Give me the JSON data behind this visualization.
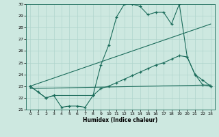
{
  "xlabel": "Humidex (Indice chaleur)",
  "xlim": [
    -0.5,
    23.5
  ],
  "ylim": [
    21,
    30
  ],
  "yticks": [
    21,
    22,
    23,
    24,
    25,
    26,
    27,
    28,
    29,
    30
  ],
  "xticks": [
    0,
    1,
    2,
    3,
    4,
    5,
    6,
    7,
    8,
    9,
    10,
    11,
    12,
    13,
    14,
    15,
    16,
    17,
    18,
    19,
    20,
    21,
    22,
    23
  ],
  "bg_color": "#cde8e0",
  "line_color": "#1a6b5a",
  "grid_color": "#b0d4cc",
  "line1_x": [
    0,
    1,
    2,
    3,
    4,
    5,
    6,
    7,
    8,
    9,
    10,
    11,
    12,
    13,
    14,
    15,
    16,
    17,
    18,
    19,
    20,
    21,
    22,
    23
  ],
  "line1_y": [
    23.0,
    22.5,
    22.0,
    22.2,
    21.2,
    21.3,
    21.3,
    21.2,
    22.2,
    24.8,
    26.5,
    28.9,
    30.0,
    30.0,
    29.8,
    29.1,
    29.3,
    29.3,
    28.3,
    30.0,
    25.5,
    24.0,
    23.1,
    23.0
  ],
  "line2_x": [
    0,
    2,
    3,
    8,
    9,
    10,
    11,
    12,
    13,
    14,
    15,
    16,
    17,
    18,
    19,
    20,
    21,
    22,
    23
  ],
  "line2_y": [
    23.0,
    22.0,
    22.2,
    22.2,
    22.8,
    23.0,
    23.3,
    23.6,
    23.9,
    24.2,
    24.5,
    24.8,
    25.0,
    25.3,
    25.6,
    25.5,
    24.0,
    23.5,
    23.0
  ],
  "line3_x": [
    0,
    23
  ],
  "line3_y": [
    23.0,
    28.3
  ],
  "line4_x": [
    0,
    23
  ],
  "line4_y": [
    22.8,
    23.1
  ]
}
